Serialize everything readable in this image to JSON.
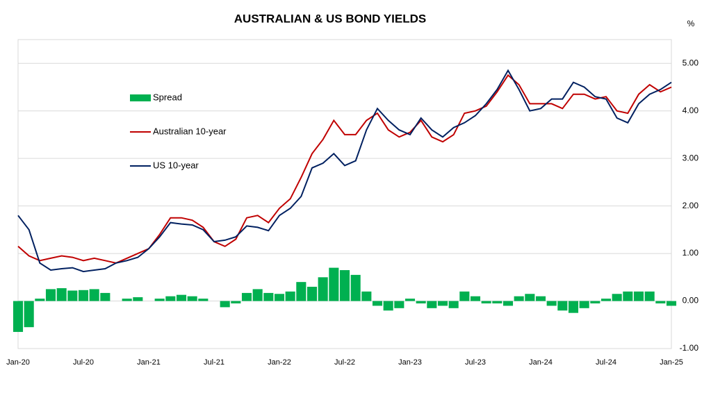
{
  "chart_data": {
    "type": "line-bar",
    "title": "AUSTRALIAN & US BOND YIELDS",
    "y_unit": "%",
    "categories": [
      "Jan-20",
      null,
      null,
      null,
      null,
      null,
      "Jul-20",
      null,
      null,
      null,
      null,
      null,
      "Jan-21",
      null,
      null,
      null,
      null,
      null,
      "Jul-21",
      null,
      null,
      null,
      null,
      null,
      "Jan-22",
      null,
      null,
      null,
      null,
      null,
      "Jul-22",
      null,
      null,
      null,
      null,
      null,
      "Jan-23",
      null,
      null,
      null,
      null,
      null,
      "Jul-23",
      null,
      null,
      null,
      null,
      null,
      "Jan-24",
      null,
      null,
      null,
      null,
      null,
      "Jul-24",
      null,
      null,
      null,
      null,
      null,
      "Jan-25"
    ],
    "series": [
      {
        "name": "Spread",
        "kind": "bar",
        "color": "#00b050",
        "values": [
          -0.65,
          -0.55,
          0.05,
          0.25,
          0.27,
          0.22,
          0.23,
          0.25,
          0.17,
          0,
          0.05,
          0.08,
          0,
          0.05,
          0.1,
          0.13,
          0.1,
          0.05,
          0,
          -0.13,
          -0.05,
          0.17,
          0.25,
          0.17,
          0.15,
          0.2,
          0.4,
          0.3,
          0.5,
          0.7,
          0.65,
          0.55,
          0.2,
          -0.1,
          -0.2,
          -0.15,
          0.05,
          -0.05,
          -0.15,
          -0.1,
          -0.15,
          0.2,
          0.1,
          -0.05,
          -0.05,
          -0.1,
          0.1,
          0.15,
          0.1,
          -0.1,
          -0.2,
          -0.25,
          -0.15,
          -0.05,
          0.05,
          0.15,
          0.2,
          0.2,
          0.2,
          -0.05,
          -0.1
        ]
      },
      {
        "name": "Australian 10-year",
        "kind": "line",
        "color": "#c00000",
        "values": [
          1.15,
          0.95,
          0.85,
          0.9,
          0.95,
          0.92,
          0.85,
          0.9,
          0.85,
          0.8,
          0.9,
          1.0,
          1.1,
          1.4,
          1.75,
          1.75,
          1.7,
          1.55,
          1.25,
          1.15,
          1.3,
          1.75,
          1.8,
          1.65,
          1.95,
          2.15,
          2.6,
          3.1,
          3.4,
          3.8,
          3.5,
          3.5,
          3.8,
          3.95,
          3.6,
          3.45,
          3.55,
          3.8,
          3.45,
          3.35,
          3.5,
          3.95,
          4.0,
          4.1,
          4.4,
          4.75,
          4.55,
          4.15,
          4.15,
          4.15,
          4.05,
          4.35,
          4.35,
          4.25,
          4.3,
          4.0,
          3.95,
          4.35,
          4.55,
          4.4,
          4.5
        ]
      },
      {
        "name": "US 10-year",
        "kind": "line",
        "color": "#002060",
        "values": [
          1.8,
          1.5,
          0.8,
          0.65,
          0.68,
          0.7,
          0.62,
          0.65,
          0.68,
          0.8,
          0.85,
          0.92,
          1.1,
          1.35,
          1.65,
          1.62,
          1.6,
          1.5,
          1.25,
          1.28,
          1.35,
          1.58,
          1.55,
          1.48,
          1.8,
          1.95,
          2.2,
          2.8,
          2.9,
          3.1,
          2.85,
          2.95,
          3.6,
          4.05,
          3.8,
          3.6,
          3.5,
          3.85,
          3.6,
          3.45,
          3.65,
          3.75,
          3.9,
          4.15,
          4.45,
          4.85,
          4.45,
          4.0,
          4.05,
          4.25,
          4.25,
          4.6,
          4.5,
          4.3,
          4.25,
          3.85,
          3.75,
          4.15,
          4.35,
          4.45,
          4.6
        ]
      }
    ],
    "ylim": [
      -1,
      5.5
    ],
    "yticks": [
      {
        "value": -1,
        "label": "-1.00"
      },
      {
        "value": 0,
        "label": "0.00"
      },
      {
        "value": 1,
        "label": "1.00"
      },
      {
        "value": 2,
        "label": "2.00"
      },
      {
        "value": 3,
        "label": "3.00"
      },
      {
        "value": 4,
        "label": "4.00"
      },
      {
        "value": 5,
        "label": "5.00"
      }
    ],
    "grid": true
  }
}
